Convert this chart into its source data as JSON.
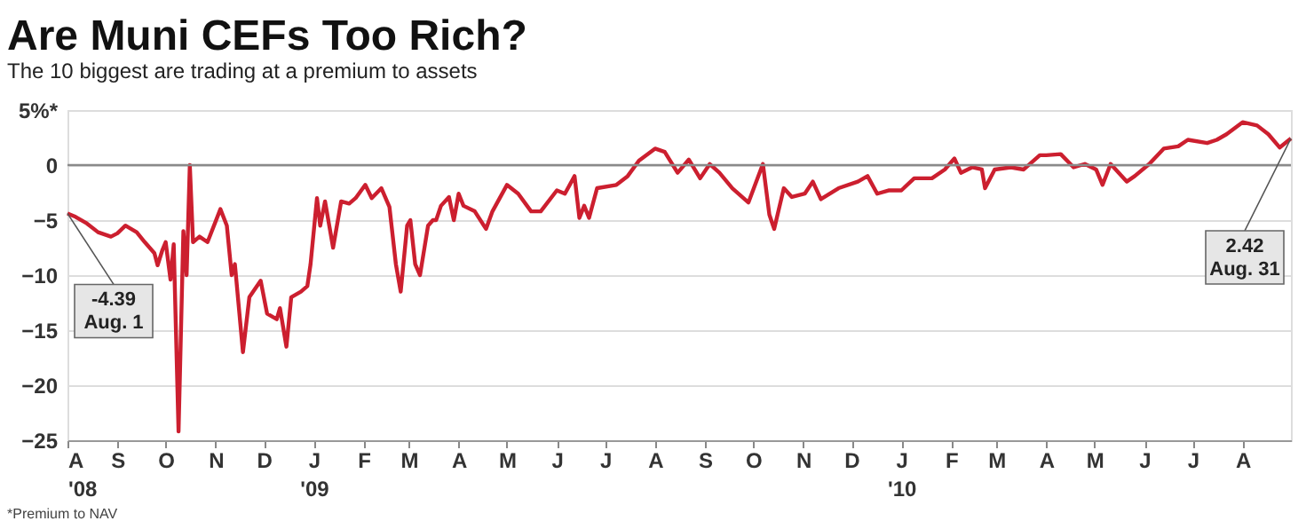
{
  "chart_data": {
    "type": "line",
    "title": "Are Muni CEFs Too Rich?",
    "subtitle": "The 10 biggest are trading at a premium to assets",
    "annotations": [
      {
        "text": "-4.39\nAug. 1",
        "x": "2008-08-01",
        "y": -4.39
      },
      {
        "text": "2.42\nAug. 31",
        "x": "2010-08-31",
        "y": 2.42
      },
      "*Premium to NAV"
    ],
    "x": [
      "2008-08-01",
      "2008-08-06",
      "2008-08-13",
      "2008-08-20",
      "2008-08-28",
      "2008-09-01",
      "2008-09-06",
      "2008-09-13",
      "2008-09-18",
      "2008-09-24",
      "2008-09-26",
      "2008-09-29",
      "2008-10-01",
      "2008-10-04",
      "2008-10-06",
      "2008-10-09",
      "2008-10-12",
      "2008-10-14",
      "2008-10-16",
      "2008-10-18",
      "2008-10-22",
      "2008-10-27",
      "2008-11-04",
      "2008-11-08",
      "2008-11-11",
      "2008-11-13",
      "2008-11-18",
      "2008-11-22",
      "2008-11-29",
      "2008-12-03",
      "2008-12-09",
      "2008-12-11",
      "2008-12-15",
      "2008-12-18",
      "2008-12-24",
      "2008-12-28",
      "2008-12-30",
      "2009-01-03",
      "2009-01-05",
      "2009-01-08",
      "2009-01-13",
      "2009-01-18",
      "2009-01-23",
      "2009-01-27",
      "2009-02-02",
      "2009-02-06",
      "2009-02-12",
      "2009-02-17",
      "2009-02-21",
      "2009-02-24",
      "2009-02-28",
      "2009-03-02",
      "2009-03-05",
      "2009-03-08",
      "2009-03-13",
      "2009-03-16",
      "2009-03-18",
      "2009-03-21",
      "2009-03-26",
      "2009-03-29",
      "2009-04-01",
      "2009-04-04",
      "2009-04-11",
      "2009-04-18",
      "2009-04-22",
      "2009-05-01",
      "2009-05-08",
      "2009-05-16",
      "2009-05-22",
      "2009-06-01",
      "2009-06-06",
      "2009-06-12",
      "2009-06-15",
      "2009-06-18",
      "2009-06-21",
      "2009-06-26",
      "2009-07-08",
      "2009-07-15",
      "2009-07-22",
      "2009-08-01",
      "2009-08-07",
      "2009-08-15",
      "2009-08-22",
      "2009-08-29",
      "2009-09-04",
      "2009-09-10",
      "2009-09-18",
      "2009-09-28",
      "2009-10-07",
      "2009-10-11",
      "2009-10-14",
      "2009-10-20",
      "2009-10-25",
      "2009-11-02",
      "2009-11-07",
      "2009-11-12",
      "2009-11-23",
      "2009-12-05",
      "2009-12-11",
      "2009-12-17",
      "2009-12-24",
      "2010-01-01",
      "2010-01-09",
      "2010-01-20",
      "2010-01-28",
      "2010-02-03",
      "2010-02-07",
      "2010-02-14",
      "2010-02-20",
      "2010-02-22",
      "2010-02-28",
      "2010-03-10",
      "2010-03-18",
      "2010-03-28",
      "2010-04-01",
      "2010-04-10",
      "2010-04-18",
      "2010-04-25",
      "2010-05-02",
      "2010-05-06",
      "2010-05-11",
      "2010-05-21",
      "2010-05-26",
      "2010-06-04",
      "2010-06-13",
      "2010-06-22",
      "2010-06-28",
      "2010-07-10",
      "2010-07-16",
      "2010-07-22",
      "2010-08-01",
      "2010-08-10",
      "2010-08-17",
      "2010-08-24",
      "2010-08-31"
    ],
    "series": [
      {
        "color": "#cc1f2f",
        "values": [
          -4.39,
          -4.7,
          -5.3,
          -6.1,
          -6.5,
          -6.2,
          -5.5,
          -6.1,
          -7.0,
          -8.0,
          -9.1,
          -7.7,
          -7.0,
          -10.4,
          -7.2,
          -24.2,
          -6.0,
          -10.0,
          0.0,
          -7.0,
          -6.5,
          -7.0,
          -4.0,
          -5.5,
          -10.0,
          -9.0,
          -17.0,
          -12.0,
          -10.5,
          -13.5,
          -14.0,
          -13.0,
          -16.5,
          -12.0,
          -11.5,
          -11.0,
          -9.0,
          -3.0,
          -5.5,
          -3.3,
          -7.5,
          -3.3,
          -3.5,
          -3.0,
          -1.8,
          -3.0,
          -2.1,
          -3.8,
          -9.0,
          -11.5,
          -5.5,
          -5.0,
          -9.0,
          -10.0,
          -5.5,
          -5.0,
          -5.0,
          -3.7,
          -2.9,
          -5.0,
          -2.6,
          -3.7,
          -4.2,
          -5.8,
          -4.2,
          -1.8,
          -2.6,
          -4.2,
          -4.2,
          -2.3,
          -2.6,
          -1.0,
          -4.8,
          -3.7,
          -4.8,
          -2.1,
          -1.8,
          -1.0,
          0.4,
          1.5,
          1.2,
          -0.7,
          0.5,
          -1.2,
          0.1,
          -0.7,
          -2.1,
          -3.4,
          0.1,
          -4.5,
          -5.8,
          -2.1,
          -2.9,
          -2.6,
          -1.5,
          -3.1,
          -2.1,
          -1.5,
          -1.0,
          -2.6,
          -2.3,
          -2.3,
          -1.2,
          -1.2,
          -0.4,
          0.6,
          -0.7,
          -0.2,
          -0.4,
          -2.1,
          -0.4,
          -0.2,
          -0.4,
          0.9,
          0.9,
          1.0,
          -0.2,
          0.1,
          -0.4,
          -1.8,
          0.1,
          -1.5,
          -1.0,
          0.1,
          1.5,
          1.7,
          2.3,
          2.0,
          2.3,
          2.8,
          3.9,
          3.6,
          2.8,
          1.6,
          2.42
        ]
      }
    ],
    "xlim": [
      "2008-08-01",
      "2010-08-31"
    ],
    "xticks": [
      {
        "value": "2008-08-01",
        "label": "A\n'08"
      },
      {
        "value": "2008-09-01",
        "label": "S"
      },
      {
        "value": "2008-10-01",
        "label": "O"
      },
      {
        "value": "2008-11-01",
        "label": "N"
      },
      {
        "value": "2008-12-01",
        "label": "D"
      },
      {
        "value": "2009-01-01",
        "label": "J\n'09"
      },
      {
        "value": "2009-02-01",
        "label": "F"
      },
      {
        "value": "2009-03-01",
        "label": "M"
      },
      {
        "value": "2009-04-01",
        "label": "A"
      },
      {
        "value": "2009-05-01",
        "label": "M"
      },
      {
        "value": "2009-06-01",
        "label": "J"
      },
      {
        "value": "2009-07-01",
        "label": "J"
      },
      {
        "value": "2009-08-01",
        "label": "A"
      },
      {
        "value": "2009-09-01",
        "label": "S"
      },
      {
        "value": "2009-10-01",
        "label": "O"
      },
      {
        "value": "2009-11-01",
        "label": "N"
      },
      {
        "value": "2009-12-01",
        "label": "D"
      },
      {
        "value": "2010-01-01",
        "label": "J\n'10"
      },
      {
        "value": "2010-02-01",
        "label": "F"
      },
      {
        "value": "2010-03-01",
        "label": "M"
      },
      {
        "value": "2010-04-01",
        "label": "A"
      },
      {
        "value": "2010-05-01",
        "label": "M"
      },
      {
        "value": "2010-06-01",
        "label": "J"
      },
      {
        "value": "2010-07-01",
        "label": "J"
      },
      {
        "value": "2010-08-01",
        "label": "A"
      }
    ],
    "ylim": [
      -25,
      5
    ],
    "yticks": [
      {
        "value": 5,
        "label": "5%*"
      },
      0,
      -5,
      -10,
      -15,
      -20,
      -25
    ],
    "ref_lines": [
      {
        "axis": "y",
        "value": 0,
        "color": "#8a8a8a"
      }
    ],
    "grid": "y",
    "marker": "none",
    "line_style": "solid"
  }
}
